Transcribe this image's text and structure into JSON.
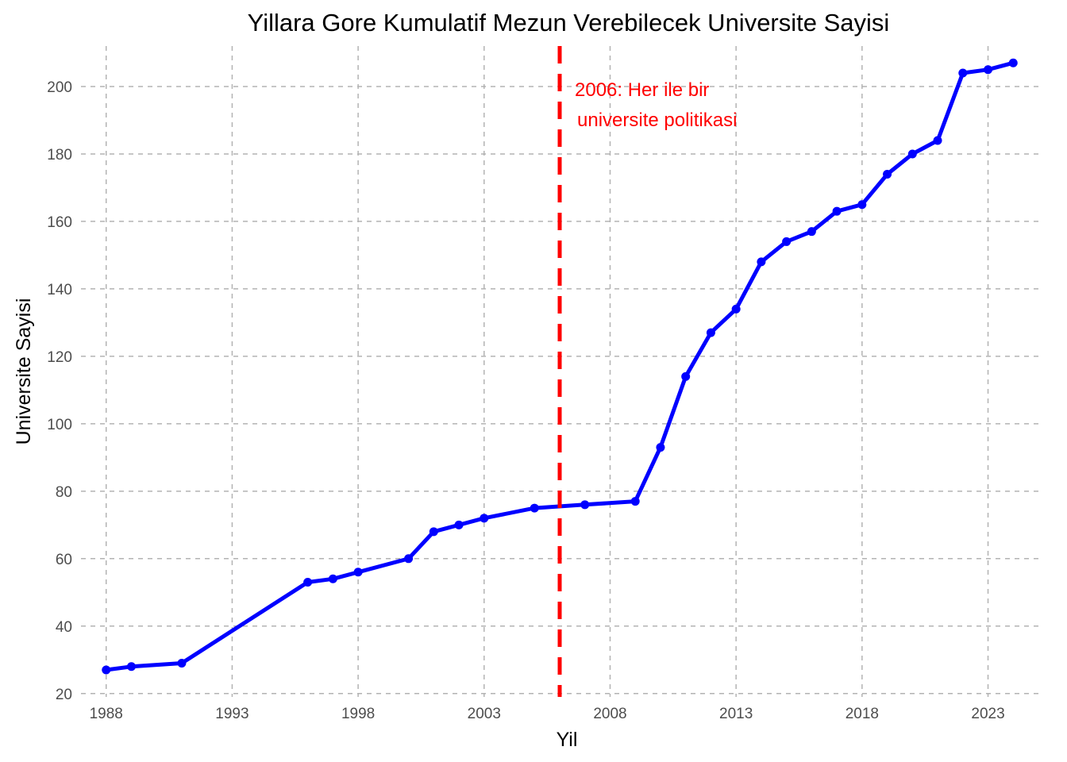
{
  "chart_data": {
    "type": "line",
    "title": "Yillara Gore Kumulatif Mezun Verebilecek Universite Sayisi",
    "xlabel": "Yil",
    "ylabel": "Universite Sayisi",
    "xlim": [
      1987,
      2025
    ],
    "ylim": [
      19,
      212
    ],
    "x_ticks": [
      1988,
      1993,
      1998,
      2003,
      2008,
      2013,
      2018,
      2023
    ],
    "y_ticks": [
      20,
      40,
      60,
      80,
      100,
      120,
      140,
      160,
      180,
      200
    ],
    "grid": true,
    "series": [
      {
        "color": "#0000ff",
        "x": [
          1988,
          1989,
          1991,
          1996,
          1997,
          1998,
          2000,
          2001,
          2002,
          2003,
          2005,
          2007,
          2009,
          2010,
          2011,
          2012,
          2013,
          2014,
          2015,
          2016,
          2017,
          2018,
          2019,
          2020,
          2021,
          2022,
          2023,
          2024
        ],
        "values": [
          27,
          28,
          29,
          53,
          54,
          56,
          60,
          68,
          70,
          72,
          75,
          76,
          77,
          93,
          114,
          127,
          134,
          148,
          154,
          157,
          163,
          165,
          174,
          180,
          184,
          204,
          205,
          207
        ]
      }
    ],
    "reference_line": {
      "x": 2006,
      "color": "#ff0000",
      "style": "dashed",
      "label_lines": [
        "2006: Her ile bir",
        "universite politikasi"
      ]
    }
  }
}
